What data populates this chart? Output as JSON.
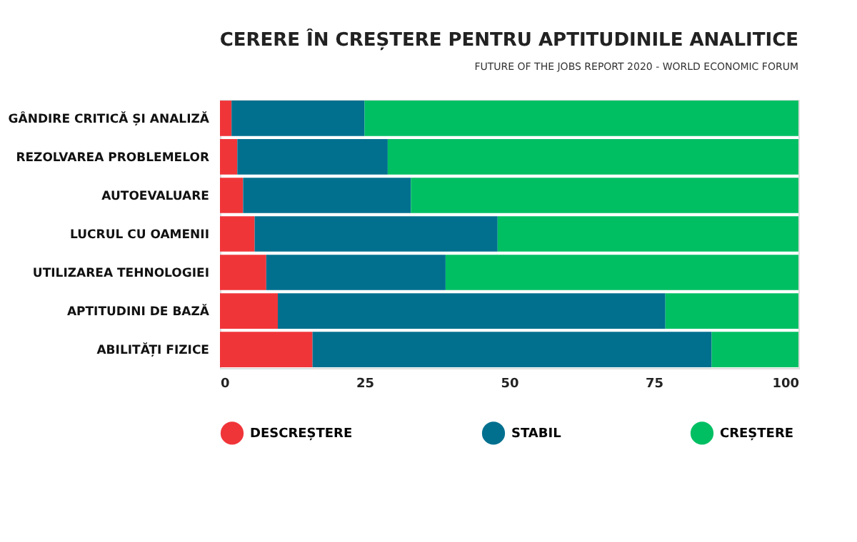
{
  "chart_data": {
    "type": "bar",
    "orientation": "horizontal",
    "stacked": true,
    "title": "CERERE ÎN CREȘTERE PENTRU APTITUDINILE ANALITICE",
    "subtitle": "FUTURE OF THE JOBS REPORT 2020 - WORLD ECONOMIC FORUM",
    "categories": [
      "GÂNDIRE CRITICĂ ȘI ANALIZĂ",
      "REZOLVAREA PROBLEMELOR",
      "AUTOEVALUARE",
      "LUCRUL CU OAMENII",
      "UTILIZAREA TEHNOLOGIEI",
      "APTITUDINI DE BAZĂ",
      "ABILITĂȚI FIZICE"
    ],
    "series": [
      {
        "name": "DESCREȘTERE",
        "color": "#f03539",
        "values": [
          2,
          3,
          4,
          6,
          8,
          10,
          16
        ]
      },
      {
        "name": "STABIL",
        "color": "#01708f",
        "values": [
          23,
          26,
          29,
          42,
          31,
          67,
          69
        ]
      },
      {
        "name": "CREȘTERE",
        "color": "#00bf63",
        "values": [
          75,
          71,
          67,
          52,
          61,
          23,
          15
        ]
      }
    ],
    "xlim": [
      0,
      100
    ],
    "xticks": [
      0,
      25,
      50,
      75,
      100
    ],
    "grid": false,
    "legend": "bottom"
  }
}
